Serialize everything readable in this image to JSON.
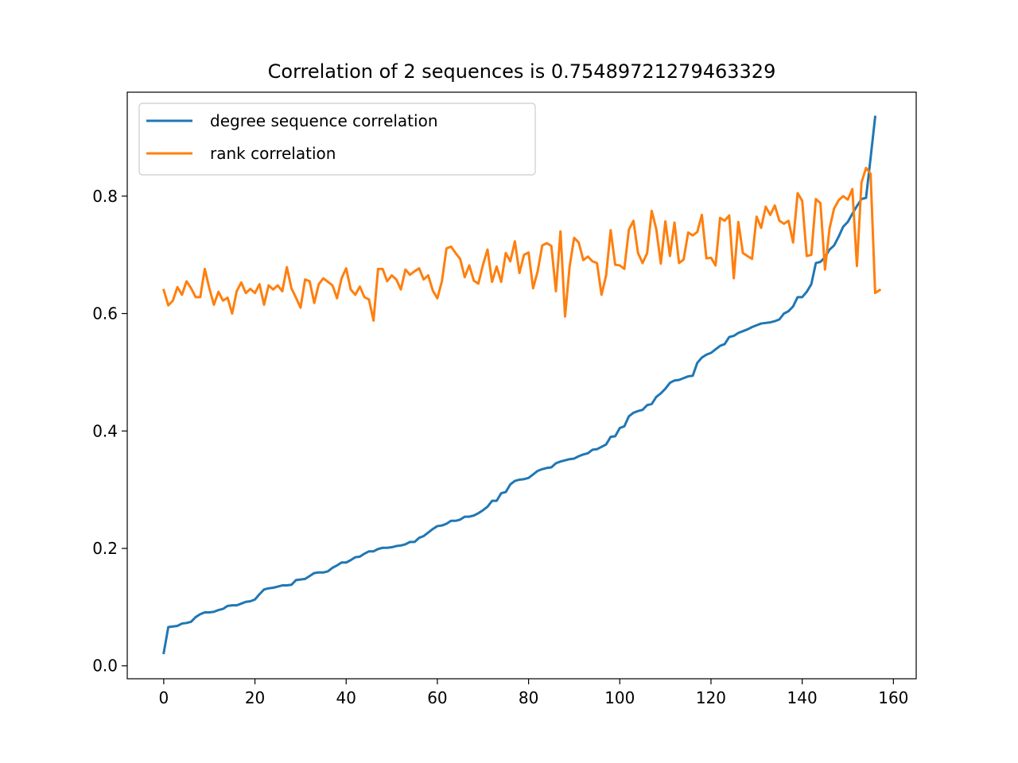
{
  "chart_data": {
    "type": "line",
    "title": "Correlation of 2 sequences is 0.7548972127946332​9",
    "xlabel": "",
    "ylabel": "",
    "xlim": [
      -8,
      165
    ],
    "ylim": [
      -0.022,
      0.977
    ],
    "xticks": [
      0,
      20,
      40,
      60,
      80,
      100,
      120,
      140,
      160
    ],
    "yticks": [
      0.0,
      0.2,
      0.4,
      0.6,
      0.8
    ],
    "ytick_labels": [
      "0.0",
      "0.2",
      "0.4",
      "0.6",
      "0.8"
    ],
    "grid": false,
    "legend_position": "top-left",
    "series": [
      {
        "name": "degree sequence correlation",
        "color": "#1f77b4",
        "values": [
          0.022,
          0.066,
          0.067,
          0.068,
          0.072,
          0.073,
          0.075,
          0.083,
          0.088,
          0.091,
          0.091,
          0.092,
          0.095,
          0.097,
          0.102,
          0.103,
          0.103,
          0.106,
          0.109,
          0.11,
          0.113,
          0.122,
          0.13,
          0.132,
          0.133,
          0.135,
          0.137,
          0.137,
          0.138,
          0.146,
          0.147,
          0.148,
          0.153,
          0.158,
          0.159,
          0.159,
          0.161,
          0.167,
          0.171,
          0.176,
          0.176,
          0.18,
          0.185,
          0.186,
          0.191,
          0.195,
          0.195,
          0.199,
          0.201,
          0.201,
          0.202,
          0.204,
          0.205,
          0.207,
          0.211,
          0.211,
          0.218,
          0.221,
          0.227,
          0.233,
          0.238,
          0.239,
          0.242,
          0.247,
          0.247,
          0.249,
          0.254,
          0.254,
          0.256,
          0.26,
          0.265,
          0.271,
          0.281,
          0.281,
          0.294,
          0.296,
          0.309,
          0.315,
          0.317,
          0.318,
          0.32,
          0.326,
          0.332,
          0.335,
          0.337,
          0.338,
          0.345,
          0.348,
          0.35,
          0.352,
          0.353,
          0.357,
          0.36,
          0.362,
          0.368,
          0.369,
          0.373,
          0.377,
          0.39,
          0.391,
          0.405,
          0.408,
          0.425,
          0.431,
          0.434,
          0.436,
          0.444,
          0.446,
          0.458,
          0.464,
          0.472,
          0.482,
          0.486,
          0.487,
          0.49,
          0.493,
          0.494,
          0.516,
          0.525,
          0.53,
          0.533,
          0.539,
          0.545,
          0.548,
          0.56,
          0.562,
          0.567,
          0.57,
          0.573,
          0.577,
          0.58,
          0.583,
          0.584,
          0.585,
          0.587,
          0.59,
          0.6,
          0.604,
          0.612,
          0.628,
          0.628,
          0.637,
          0.65,
          0.686,
          0.688,
          0.696,
          0.709,
          0.716,
          0.731,
          0.748,
          0.756,
          0.77,
          0.783,
          0.795,
          0.797,
          0.865,
          0.935
        ]
      },
      {
        "name": "rank correlation",
        "color": "#ff7f0e",
        "values": [
          0.64,
          0.614,
          0.622,
          0.645,
          0.632,
          0.655,
          0.643,
          0.628,
          0.628,
          0.676,
          0.643,
          0.615,
          0.637,
          0.622,
          0.627,
          0.6,
          0.638,
          0.653,
          0.635,
          0.642,
          0.635,
          0.65,
          0.615,
          0.648,
          0.641,
          0.648,
          0.638,
          0.679,
          0.643,
          0.627,
          0.61,
          0.658,
          0.655,
          0.618,
          0.65,
          0.66,
          0.654,
          0.648,
          0.626,
          0.66,
          0.677,
          0.641,
          0.632,
          0.646,
          0.628,
          0.624,
          0.588,
          0.676,
          0.676,
          0.655,
          0.665,
          0.658,
          0.641,
          0.675,
          0.666,
          0.672,
          0.677,
          0.658,
          0.665,
          0.639,
          0.626,
          0.655,
          0.711,
          0.714,
          0.703,
          0.693,
          0.662,
          0.682,
          0.656,
          0.651,
          0.683,
          0.709,
          0.654,
          0.68,
          0.654,
          0.703,
          0.689,
          0.723,
          0.669,
          0.7,
          0.704,
          0.643,
          0.672,
          0.716,
          0.72,
          0.715,
          0.638,
          0.74,
          0.595,
          0.68,
          0.729,
          0.721,
          0.691,
          0.697,
          0.689,
          0.686,
          0.632,
          0.665,
          0.742,
          0.683,
          0.682,
          0.676,
          0.743,
          0.758,
          0.703,
          0.686,
          0.703,
          0.775,
          0.744,
          0.685,
          0.757,
          0.698,
          0.755,
          0.686,
          0.692,
          0.738,
          0.733,
          0.739,
          0.768,
          0.694,
          0.695,
          0.682,
          0.763,
          0.758,
          0.767,
          0.66,
          0.756,
          0.703,
          0.698,
          0.693,
          0.765,
          0.746,
          0.782,
          0.768,
          0.784,
          0.758,
          0.753,
          0.758,
          0.721,
          0.805,
          0.792,
          0.698,
          0.7,
          0.795,
          0.788,
          0.675,
          0.745,
          0.779,
          0.793,
          0.8,
          0.794,
          0.812,
          0.681,
          0.823,
          0.848,
          0.838,
          0.635,
          0.64
        ]
      }
    ]
  }
}
